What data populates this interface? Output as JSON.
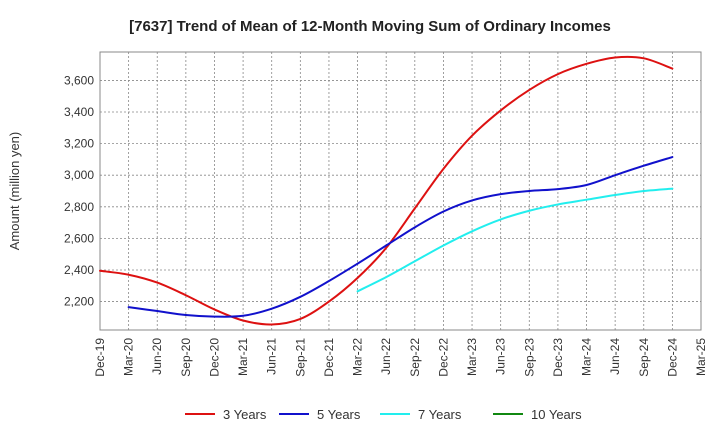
{
  "chart_data": {
    "type": "line",
    "title": "[7637]  Trend of Mean of 12-Month Moving Sum of Ordinary Incomes",
    "xlabel": "",
    "ylabel": "Amount (million yen)",
    "x_labels": [
      "Dec-19",
      "Mar-20",
      "Jun-20",
      "Sep-20",
      "Dec-20",
      "Mar-21",
      "Jun-21",
      "Sep-21",
      "Dec-21",
      "Mar-22",
      "Jun-22",
      "Sep-22",
      "Dec-22",
      "Mar-23",
      "Jun-23",
      "Sep-23",
      "Dec-23",
      "Mar-24",
      "Jun-24",
      "Sep-24",
      "Dec-24",
      "Mar-25"
    ],
    "y_ticks": [
      2200,
      2400,
      2600,
      2800,
      3000,
      3200,
      3400,
      3600
    ],
    "y_tick_labels": [
      "2,200",
      "2,400",
      "2,600",
      "2,800",
      "3,000",
      "3,200",
      "3,400",
      "3,600"
    ],
    "ylim": [
      2020,
      3780
    ],
    "grid": true,
    "legend_position": "bottom",
    "series": [
      {
        "name": "3 Years",
        "color": "#dd1111",
        "values": [
          2395,
          2370,
          2320,
          2240,
          2150,
          2080,
          2055,
          2090,
          2200,
          2350,
          2540,
          2790,
          3040,
          3250,
          3410,
          3540,
          3640,
          3705,
          3745,
          3740,
          3675,
          null
        ]
      },
      {
        "name": "5 Years",
        "color": "#1111cc",
        "values": [
          null,
          2165,
          2140,
          2115,
          2105,
          2110,
          2155,
          2230,
          2330,
          2440,
          2555,
          2670,
          2770,
          2840,
          2880,
          2900,
          2912,
          2938,
          3000,
          3060,
          3115,
          null
        ]
      },
      {
        "name": "7 Years",
        "color": "#22eeee",
        "values": [
          null,
          null,
          null,
          null,
          null,
          null,
          null,
          null,
          null,
          2265,
          2355,
          2455,
          2555,
          2645,
          2720,
          2775,
          2815,
          2845,
          2875,
          2900,
          2915,
          null
        ]
      },
      {
        "name": "10 Years",
        "color": "#118811",
        "values": [
          null,
          null,
          null,
          null,
          null,
          null,
          null,
          null,
          null,
          null,
          null,
          null,
          null,
          null,
          null,
          null,
          null,
          null,
          null,
          null,
          null,
          null
        ]
      }
    ]
  }
}
